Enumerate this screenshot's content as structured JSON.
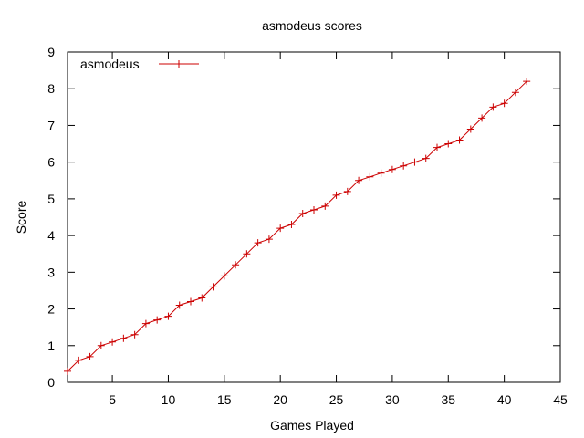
{
  "chart_data": {
    "type": "line",
    "title": "asmodeus scores",
    "xlabel": "Games Played",
    "ylabel": "Score",
    "xlim": [
      1,
      45
    ],
    "ylim": [
      0,
      9
    ],
    "xticks": [
      5,
      10,
      15,
      20,
      25,
      30,
      35,
      40,
      45
    ],
    "yticks": [
      0,
      1,
      2,
      3,
      4,
      5,
      6,
      7,
      8,
      9
    ],
    "grid": false,
    "legend": "top-left",
    "series": [
      {
        "name": "asmodeus",
        "color": "#cc0000",
        "marker": "plus",
        "x": [
          1,
          2,
          3,
          4,
          5,
          6,
          7,
          8,
          9,
          10,
          11,
          12,
          13,
          14,
          15,
          16,
          17,
          18,
          19,
          20,
          21,
          22,
          23,
          24,
          25,
          26,
          27,
          28,
          29,
          30,
          31,
          32,
          33,
          34,
          35,
          36,
          37,
          38,
          39,
          40,
          41,
          42
        ],
        "y": [
          0.3,
          0.6,
          0.7,
          1.0,
          1.1,
          1.2,
          1.3,
          1.6,
          1.7,
          1.8,
          2.1,
          2.2,
          2.3,
          2.6,
          2.9,
          3.2,
          3.5,
          3.8,
          3.9,
          4.2,
          4.3,
          4.6,
          4.7,
          4.8,
          5.1,
          5.2,
          5.5,
          5.6,
          5.7,
          5.8,
          5.9,
          6.0,
          6.1,
          6.4,
          6.5,
          6.6,
          6.9,
          7.2,
          7.5,
          7.6,
          7.9,
          8.2
        ]
      }
    ]
  }
}
